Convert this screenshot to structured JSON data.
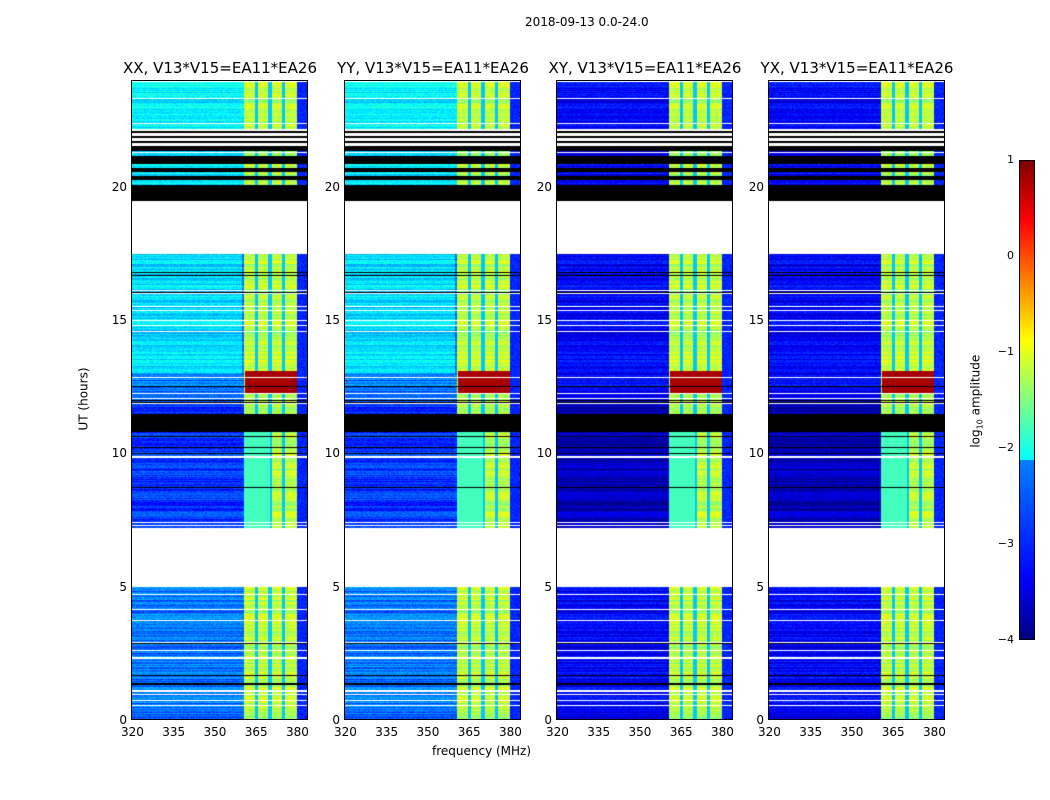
{
  "chart_data": {
    "type": "heatmap",
    "title": "2018-09-13 0.0-24.0",
    "xlabel": "frequency (MHz)",
    "ylabel": "UT (hours)",
    "xlim": [
      320,
      384
    ],
    "ylim": [
      0,
      24
    ],
    "xticks": [
      "320",
      "335",
      "350",
      "365",
      "380"
    ],
    "yticks": [
      "0",
      "5",
      "10",
      "15",
      "20"
    ],
    "panels": [
      {
        "title": "XX, V13*V15=EA11*EA26",
        "base_level": -2.8
      },
      {
        "title": "YY, V13*V15=EA11*EA26",
        "base_level": -2.8
      },
      {
        "title": "XY, V13*V15=EA11*EA26",
        "base_level": -3.4
      },
      {
        "title": "YX, V13*V15=EA11*EA26",
        "base_level": -3.4
      }
    ],
    "rfi_band_mhz": [
      360.5,
      380
    ],
    "rfi_level": -1.2,
    "strong_rfi": {
      "hours": [
        12.3,
        13.1
      ],
      "mhz": [
        361,
        380
      ],
      "level": 0.8
    },
    "flagged_blank_hours": [
      [
        5.0,
        7.2
      ],
      [
        17.5,
        19.5
      ]
    ],
    "flagged_black_hours": [
      [
        19.5,
        20.1
      ],
      [
        20.3,
        20.45
      ],
      [
        20.6,
        20.75
      ],
      [
        20.9,
        21.2
      ],
      [
        21.4,
        21.5
      ],
      [
        10.8,
        11.5
      ]
    ],
    "colorbar": {
      "label": "log10 amplitude",
      "label_main": "log",
      "label_sub": "10",
      "label_rest": " amplitude",
      "ticks": [
        "1",
        "0",
        "−1",
        "−2",
        "−3",
        "−4"
      ],
      "range": [
        -4,
        1
      ],
      "colormap": "jet"
    }
  }
}
